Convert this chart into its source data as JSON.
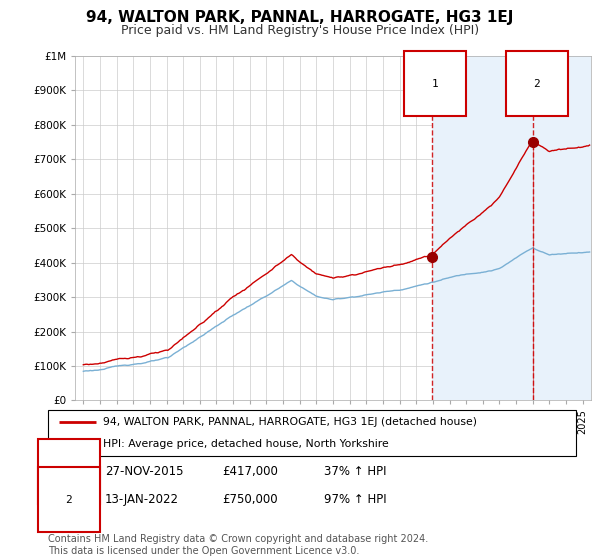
{
  "title": "94, WALTON PARK, PANNAL, HARROGATE, HG3 1EJ",
  "subtitle": "Price paid vs. HM Land Registry's House Price Index (HPI)",
  "legend_line1": "94, WALTON PARK, PANNAL, HARROGATE, HG3 1EJ (detached house)",
  "legend_line2": "HPI: Average price, detached house, North Yorkshire",
  "note": "Contains HM Land Registry data © Crown copyright and database right 2024.\nThis data is licensed under the Open Government Licence v3.0.",
  "sale1_date": "27-NOV-2015",
  "sale1_price": 417000,
  "sale1_label": "37% ↑ HPI",
  "sale1_x": 2015.92,
  "sale2_date": "13-JAN-2022",
  "sale2_price": 750000,
  "sale2_label": "97% ↑ HPI",
  "sale2_x": 2022.04,
  "ylim": [
    0,
    1000000
  ],
  "xlim_left": 1994.5,
  "xlim_right": 2025.5,
  "property_color": "#cc0000",
  "hpi_color": "#7ab0d4",
  "shade_color": "#ddeeff",
  "dashed_color": "#cc0000",
  "background_color": "#ffffff",
  "grid_color": "#cccccc",
  "title_fontsize": 11,
  "subtitle_fontsize": 9,
  "tick_fontsize": 7.5,
  "note_fontsize": 7
}
